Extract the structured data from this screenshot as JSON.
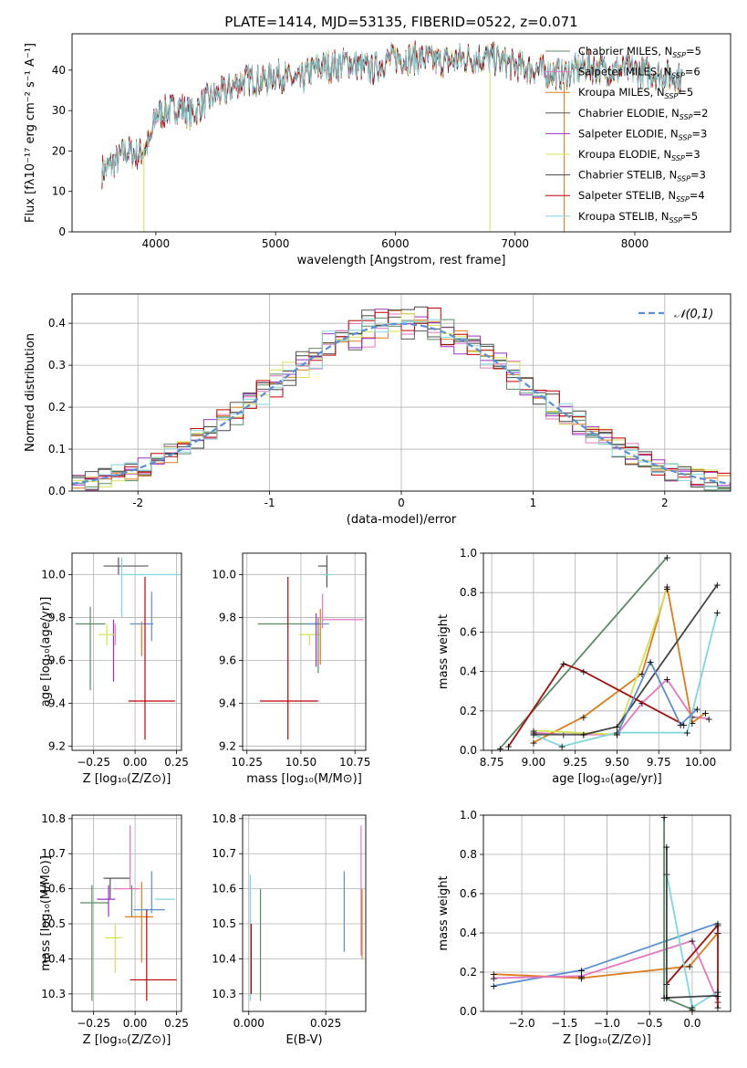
{
  "figure": {
    "title": "PLATE=1414, MJD=53135, FIBERID=0522, z=0.071"
  },
  "chart_data": [
    {
      "id": "spectrum",
      "type": "line",
      "xlabel": "wavelength [Angstrom, rest frame]",
      "ylabel": "Flux [fλ10⁻¹⁷ erg cm⁻² s⁻¹ A⁻¹]",
      "xlim": [
        3300,
        8800
      ],
      "ylim": [
        0,
        49
      ],
      "xticks": [
        4000,
        5000,
        6000,
        7000,
        8000
      ],
      "yticks": [
        0,
        10,
        20,
        30,
        40
      ],
      "grid": false,
      "legend_position": "top-right",
      "x_range_data": [
        3550,
        8400
      ],
      "envelope": [
        {
          "x": 3550,
          "y": 15
        },
        {
          "x": 3650,
          "y": 17
        },
        {
          "x": 3750,
          "y": 20
        },
        {
          "x": 3850,
          "y": 19
        },
        {
          "x": 3950,
          "y": 22
        },
        {
          "x": 4000,
          "y": 29
        },
        {
          "x": 4100,
          "y": 30
        },
        {
          "x": 4200,
          "y": 31
        },
        {
          "x": 4300,
          "y": 29
        },
        {
          "x": 4400,
          "y": 32
        },
        {
          "x": 4500,
          "y": 34
        },
        {
          "x": 4600,
          "y": 35
        },
        {
          "x": 4700,
          "y": 37
        },
        {
          "x": 4800,
          "y": 38
        },
        {
          "x": 4900,
          "y": 37
        },
        {
          "x": 5000,
          "y": 39
        },
        {
          "x": 5100,
          "y": 38
        },
        {
          "x": 5200,
          "y": 37
        },
        {
          "x": 5300,
          "y": 40
        },
        {
          "x": 5400,
          "y": 41
        },
        {
          "x": 5500,
          "y": 41
        },
        {
          "x": 5600,
          "y": 42
        },
        {
          "x": 5700,
          "y": 41
        },
        {
          "x": 5800,
          "y": 40
        },
        {
          "x": 5900,
          "y": 42
        },
        {
          "x": 6000,
          "y": 43
        },
        {
          "x": 6200,
          "y": 43
        },
        {
          "x": 6400,
          "y": 42
        },
        {
          "x": 6600,
          "y": 43
        },
        {
          "x": 6800,
          "y": 43
        },
        {
          "x": 7000,
          "y": 41
        },
        {
          "x": 7200,
          "y": 40
        },
        {
          "x": 7400,
          "y": 39
        },
        {
          "x": 7600,
          "y": 41
        },
        {
          "x": 7800,
          "y": 40
        },
        {
          "x": 8000,
          "y": 40
        },
        {
          "x": 8200,
          "y": 39
        },
        {
          "x": 8400,
          "y": 38
        }
      ],
      "series": [
        {
          "name": "Chabrier MILES, N$_{SSP}$=5",
          "color": "#5a8a63"
        },
        {
          "name": "Salpeter MILES, N$_{SSP}$=6",
          "color": "#e377c2"
        },
        {
          "name": "Kroupa MILES, N$_{SSP}$=5",
          "color": "#e07b1a"
        },
        {
          "name": "Chabrier ELODIE, N$_{SSP}$=2",
          "color": "#555555"
        },
        {
          "name": "Salpeter ELODIE, N$_{SSP}$=3",
          "color": "#9b30c8"
        },
        {
          "name": "Kroupa ELODIE, N$_{SSP}$=3",
          "color": "#d4e157"
        },
        {
          "name": "Chabrier STELIB, N$_{SSP}$=3",
          "color": "#444444"
        },
        {
          "name": "Salpeter STELIB, N$_{SSP}$=4",
          "color": "#c00000"
        },
        {
          "name": "Kroupa STELIB, N$_{SSP}$=5",
          "color": "#7fd6dc"
        }
      ],
      "legend_labels": [
        {
          "pre": "Chabrier MILES, N",
          "sub": "SSP",
          "post": "=5"
        },
        {
          "pre": "Salpeter MILES, N",
          "sub": "SSP",
          "post": "=6"
        },
        {
          "pre": "Kroupa MILES, N",
          "sub": "SSP",
          "post": "=5"
        },
        {
          "pre": "Chabrier ELODIE, N",
          "sub": "SSP",
          "post": "=2"
        },
        {
          "pre": "Salpeter ELODIE, N",
          "sub": "SSP",
          "post": "=3"
        },
        {
          "pre": "Kroupa ELODIE, N",
          "sub": "SSP",
          "post": "=3"
        },
        {
          "pre": "Chabrier STELIB, N",
          "sub": "SSP",
          "post": "=3"
        },
        {
          "pre": "Salpeter STELIB, N",
          "sub": "SSP",
          "post": "=4"
        },
        {
          "pre": "Kroupa STELIB, N",
          "sub": "SSP",
          "post": "=5"
        }
      ]
    },
    {
      "id": "residual-histogram",
      "type": "area",
      "xlabel": "(data-model)/error",
      "ylabel": "Normed distribution",
      "xlim": [
        -2.5,
        2.5
      ],
      "ylim": [
        0,
        0.47
      ],
      "xticks": [
        -2,
        -1,
        0,
        1,
        2
      ],
      "yticks": [
        0.0,
        0.1,
        0.2,
        0.3,
        0.4
      ],
      "grid": true,
      "legend_position": "top-right",
      "legend_label": "𝒩(0,1)",
      "gaussian_color": "#5a8fd6",
      "bin_width": 0.1
    },
    {
      "id": "age-vs-Z",
      "type": "scatter",
      "xlabel": "Z [log₁₀(Z/Z⊙)]",
      "ylabel": "age  [log₁₀(age/yr)]",
      "xlim": [
        -0.38,
        0.28
      ],
      "ylim": [
        9.18,
        10.1
      ],
      "xticks": [
        -0.2,
        0.0,
        0.2
      ],
      "yticks": [
        9.2,
        9.4,
        9.6,
        9.8,
        10.0
      ],
      "xticklabels": [
        "−0.25",
        "0.00",
        "0.25"
      ],
      "xticks_actual": [
        -0.25,
        0.0,
        0.25
      ],
      "grid": true,
      "points": [
        {
          "series": "Chabrier MILES",
          "x": -0.27,
          "y": 9.77,
          "xerr": [
            0.1,
            0.1
          ],
          "yerr": [
            0.31,
            0.08
          ]
        },
        {
          "series": "Salpeter MILES",
          "x": -0.13,
          "y": 9.77,
          "xerr": [
            0.0,
            0.0
          ],
          "yerr": [
            0.22,
            0.0
          ]
        },
        {
          "series": "Kroupa MILES",
          "x": 0.05,
          "y": 9.72,
          "xerr": [
            0.0,
            0.0
          ],
          "yerr": [
            0.07,
            0.06
          ]
        },
        {
          "series": "Chabrier ELODIE",
          "x": -0.1,
          "y": 10.0,
          "xerr": [
            0.08,
            0.08
          ],
          "yerr": [
            0.0,
            0.0
          ]
        },
        {
          "series": "Salpeter ELODIE",
          "x": -0.12,
          "y": 9.72,
          "xerr": [
            0.06,
            0.0
          ],
          "yerr": [
            0.1,
            0.0
          ]
        },
        {
          "series": "Kroupa ELODIE",
          "x": -0.17,
          "y": 9.72,
          "xerr": [
            0.05,
            0.05
          ],
          "yerr": [
            0.05,
            0.0
          ]
        },
        {
          "series": "Chabrier STELIB",
          "x": -0.16,
          "y": 10.05,
          "xerr": [
            0.0,
            0.2
          ],
          "yerr": [
            0.04,
            0.04
          ]
        },
        {
          "series": "Salpeter STELIB",
          "x": 0.07,
          "y": 9.41,
          "xerr": [
            0.12,
            0.18
          ],
          "yerr": [
            0.18,
            0.58
          ]
        },
        {
          "series": "Kroupa STELIB",
          "x": -0.08,
          "y": 10.0,
          "xerr": [
            0.0,
            0.34
          ],
          "yerr": [
            0.2,
            0.08
          ]
        },
        {
          "series": "blue",
          "x": 0.04,
          "y": 9.77,
          "xerr": [
            0.08,
            0.07
          ],
          "yerr": [
            0.0,
            0.0
          ]
        },
        {
          "series": "blue-v",
          "x": 0.1,
          "y": 9.76,
          "xerr": [
            0.0,
            0.0
          ],
          "yerr": [
            0.06,
            0.16
          ]
        }
      ]
    },
    {
      "id": "age-vs-mass",
      "type": "scatter",
      "xlabel": "mass [log₁₀(M/M⊙)]",
      "ylabel": "",
      "xlim": [
        10.23,
        10.8
      ],
      "ylim": [
        9.18,
        10.1
      ],
      "xticks": [
        10.25,
        10.5,
        10.75
      ],
      "yticks": [
        9.2,
        9.4,
        9.6,
        9.8,
        10.0
      ],
      "grid": true
    },
    {
      "id": "weight-vs-age",
      "type": "line",
      "xlabel": "age  [log₁₀(age/yr)]",
      "ylabel": "mass weight",
      "xlim": [
        8.7,
        10.18
      ],
      "ylim": [
        0.0,
        1.0
      ],
      "xticks": [
        8.75,
        9.0,
        9.25,
        9.5,
        9.75,
        10.0
      ],
      "yticks": [
        0.0,
        0.2,
        0.4,
        0.6,
        0.8,
        1.0
      ],
      "grid": true,
      "series": [
        {
          "name": "Chabrier MILES",
          "color": "#5a8a63",
          "x": [
            8.8,
            9.8
          ],
          "y": [
            0.01,
            0.98
          ]
        },
        {
          "name": "Salpeter MILES",
          "color": "#e377c2",
          "x": [
            9.0,
            9.18,
            9.5,
            9.65,
            9.8,
            9.95,
            10.05
          ],
          "y": [
            0.09,
            0.08,
            0.08,
            0.24,
            0.36,
            0.17,
            0.16
          ]
        },
        {
          "name": "Kroupa MILES",
          "color": "#e07b1a",
          "x": [
            9.0,
            9.3,
            9.65,
            9.8,
            9.95,
            10.03
          ],
          "y": [
            0.04,
            0.17,
            0.39,
            0.83,
            0.14,
            0.19
          ]
        },
        {
          "name": "Chabrier ELODIE",
          "color": "#555555",
          "x": [
            9.0,
            9.3
          ],
          "y": [
            0.08,
            0.08
          ]
        },
        {
          "name": "Kroupa ELODIE",
          "color": "#d4e157",
          "x": [
            9.0,
            9.5,
            9.8
          ],
          "y": [
            0.1,
            0.08,
            0.82
          ]
        },
        {
          "name": "Chabrier STELIB",
          "color": "#444444",
          "x": [
            9.3,
            9.5,
            10.1
          ],
          "y": [
            0.08,
            0.12,
            0.84
          ]
        },
        {
          "name": "Salpeter STELIB",
          "color": "#a01010",
          "x": [
            8.85,
            9.18,
            9.3,
            9.9
          ],
          "y": [
            0.02,
            0.44,
            0.4,
            0.13
          ]
        },
        {
          "name": "Kroupa STELIB",
          "color": "#7fd6dc",
          "x": [
            9.0,
            9.17,
            9.5,
            9.92,
            10.1
          ],
          "y": [
            0.08,
            0.02,
            0.09,
            0.09,
            0.7
          ]
        },
        {
          "name": "blue",
          "color": "#5a8fd6",
          "x": [
            9.5,
            9.7,
            9.88,
            9.98
          ],
          "y": [
            0.08,
            0.45,
            0.13,
            0.21
          ]
        }
      ]
    },
    {
      "id": "mass-vs-Z",
      "type": "scatter",
      "xlabel": "Z [log₁₀(Z/Z⊙)]",
      "ylabel": "mass [log₁₀(M/M⊙)]",
      "xlim": [
        -0.38,
        0.28
      ],
      "ylim": [
        10.25,
        10.81
      ],
      "xticks_actual": [
        -0.25,
        0.0,
        0.25
      ],
      "xticklabels": [
        "−0.25",
        "0.00",
        "0.25"
      ],
      "yticks": [
        10.3,
        10.4,
        10.5,
        10.6,
        10.7,
        10.8
      ],
      "grid": true
    },
    {
      "id": "mass-vs-ebv",
      "type": "scatter",
      "xlabel": "E(B-V)",
      "ylabel": "",
      "xlim": [
        -0.002,
        0.038
      ],
      "ylim": [
        10.25,
        10.81
      ],
      "xticks": [
        0.0,
        0.025
      ],
      "xticklabels": [
        "0.000",
        "0.025"
      ],
      "yticks": [
        10.3,
        10.4,
        10.5,
        10.6,
        10.7,
        10.8
      ],
      "grid": true
    },
    {
      "id": "weight-vs-Z",
      "type": "line",
      "xlabel": "Z [log₁₀(Z/Z⊙)]",
      "ylabel": "mass weight",
      "xlim": [
        -2.45,
        0.45
      ],
      "ylim": [
        0.0,
        1.0
      ],
      "xticks": [
        -2.0,
        -1.5,
        -1.0,
        -0.5,
        0.0
      ],
      "xticklabels": [
        "−2.0",
        "−1.5",
        "−1.0",
        "−0.5",
        "0.0"
      ],
      "yticks": [
        0.0,
        0.2,
        0.4,
        0.6,
        0.8,
        1.0
      ],
      "grid": true,
      "series": [
        {
          "name": "blue",
          "color": "#5a8fd6",
          "x": [
            -2.33,
            -1.3,
            0.3
          ],
          "y": [
            0.13,
            0.21,
            0.45
          ]
        },
        {
          "name": "Kroupa MILES",
          "color": "#e07b1a",
          "x": [
            -2.33,
            -1.3,
            -0.03,
            0.3
          ],
          "y": [
            0.19,
            0.17,
            0.23,
            0.4
          ]
        },
        {
          "name": "Salpeter MILES",
          "color": "#e377c2",
          "x": [
            -2.33,
            -1.3,
            0.0,
            0.3
          ],
          "y": [
            0.17,
            0.18,
            0.36,
            0.05
          ]
        },
        {
          "name": "Chabrier MILES",
          "color": "#5a8a63",
          "x": [
            -0.33,
            -0.33,
            0.0
          ],
          "y": [
            0.99,
            0.07,
            0.01
          ]
        },
        {
          "name": "Salpeter STELIB",
          "color": "#a01010",
          "x": [
            -0.3,
            0.3,
            0.3
          ],
          "y": [
            0.14,
            0.44,
            0.02
          ]
        },
        {
          "name": "Kroupa STELIB",
          "color": "#7fd6dc",
          "x": [
            -0.3,
            0.0,
            0.3
          ],
          "y": [
            0.7,
            0.02,
            0.1
          ]
        },
        {
          "name": "Chabrier STELIB",
          "color": "#444444",
          "x": [
            -0.3,
            -0.3,
            0.3
          ],
          "y": [
            0.84,
            0.07,
            0.08
          ]
        }
      ]
    }
  ]
}
